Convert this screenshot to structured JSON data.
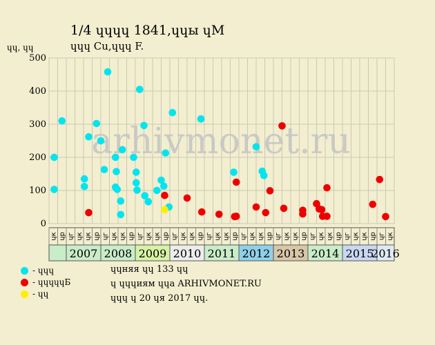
{
  "header": {
    "title": "1/4 ɥɥɥɥ 1841,ɥɥы ɥM",
    "subtitle": "ɥɥɥ Cu,ɥɥɥ F."
  },
  "legend": [
    {
      "label": "- ɥɥɥ",
      "color": "#00e5ef"
    },
    {
      "label": "- ɥɥɥɥɥБ",
      "color": "#ee0000"
    },
    {
      "label": "- ɥɥ",
      "color": "#ffee00"
    }
  ],
  "notes": {
    "line1": "ɥɥняя ɥɥ 133 ɥɥ",
    "line2": "ɥ ɥɥɥиям ɥɥa ARHIVMONET.RU",
    "line3": "ɥɥɥ ɥ 20 ɥя 2017 ɥɥ."
  },
  "watermark": "arhivmonet.ru",
  "chart_data": {
    "type": "scatter",
    "ylabel": "ɥɥ, ɥɥ",
    "ylim": [
      0,
      500
    ],
    "yticks": [
      0,
      100,
      200,
      300,
      400,
      500
    ],
    "grid": true,
    "month_labels": [
      "ɥк",
      "ɥр",
      "ɥг",
      "ɥк"
    ],
    "years": [
      "2007",
      "2008",
      "2009",
      "2010",
      "2011",
      "2012",
      "2013",
      "2014",
      "2015",
      "2016"
    ],
    "year_colors": [
      "#c9ecc9",
      "#c9ecc9",
      "#d6f2a6",
      "#ececec",
      "#c9ecc9",
      "#8fd0e8",
      "#d8c6a8",
      "#c9ecc9",
      "#c9d7f2",
      "#dfe9f4"
    ],
    "x_note": "x = slot index (0..39), four quarterly slots per year from 2007",
    "series": [
      {
        "name": "- ɥɥɥ",
        "color": "#00e5ef",
        "points": [
          [
            0.1,
            200
          ],
          [
            0.1,
            103
          ],
          [
            1.0,
            310
          ],
          [
            3.6,
            135
          ],
          [
            3.6,
            112
          ],
          [
            4.1,
            262
          ],
          [
            5.0,
            302
          ],
          [
            5.5,
            250
          ],
          [
            5.9,
            163
          ],
          [
            6.3,
            458
          ],
          [
            7.2,
            200
          ],
          [
            7.2,
            110
          ],
          [
            7.3,
            157
          ],
          [
            7.4,
            103
          ],
          [
            7.8,
            68
          ],
          [
            7.8,
            27
          ],
          [
            8.0,
            223
          ],
          [
            9.3,
            200
          ],
          [
            9.6,
            123
          ],
          [
            9.6,
            155
          ],
          [
            9.7,
            101
          ],
          [
            10.0,
            405
          ],
          [
            10.5,
            296
          ],
          [
            10.6,
            84
          ],
          [
            11.0,
            66
          ],
          [
            12.0,
            100
          ],
          [
            12.5,
            131
          ],
          [
            12.8,
            113
          ],
          [
            13.0,
            213
          ],
          [
            13.4,
            50
          ],
          [
            13.8,
            335
          ],
          [
            17.1,
            316
          ],
          [
            20.9,
            155
          ],
          [
            23.5,
            232
          ],
          [
            24.2,
            158
          ],
          [
            24.4,
            145
          ]
        ]
      },
      {
        "name": "- ɥɥɥɥɥБ",
        "color": "#ee0000",
        "points": [
          [
            4.1,
            33
          ],
          [
            12.9,
            85
          ],
          [
            15.5,
            77
          ],
          [
            17.2,
            35
          ],
          [
            19.2,
            28
          ],
          [
            21.0,
            21
          ],
          [
            21.2,
            22
          ],
          [
            21.2,
            125
          ],
          [
            23.5,
            50
          ],
          [
            24.6,
            33
          ],
          [
            25.1,
            99
          ],
          [
            26.5,
            295
          ],
          [
            26.7,
            46
          ],
          [
            28.9,
            40
          ],
          [
            28.9,
            29
          ],
          [
            30.5,
            60
          ],
          [
            30.8,
            44
          ],
          [
            31.1,
            42
          ],
          [
            31.2,
            22
          ],
          [
            31.7,
            22
          ],
          [
            31.7,
            108
          ],
          [
            37.0,
            58
          ],
          [
            37.8,
            133
          ],
          [
            38.5,
            21
          ]
        ]
      },
      {
        "name": "- ɥɥ",
        "color": "#ffee00",
        "points": [
          [
            12.9,
            42
          ]
        ]
      }
    ]
  }
}
